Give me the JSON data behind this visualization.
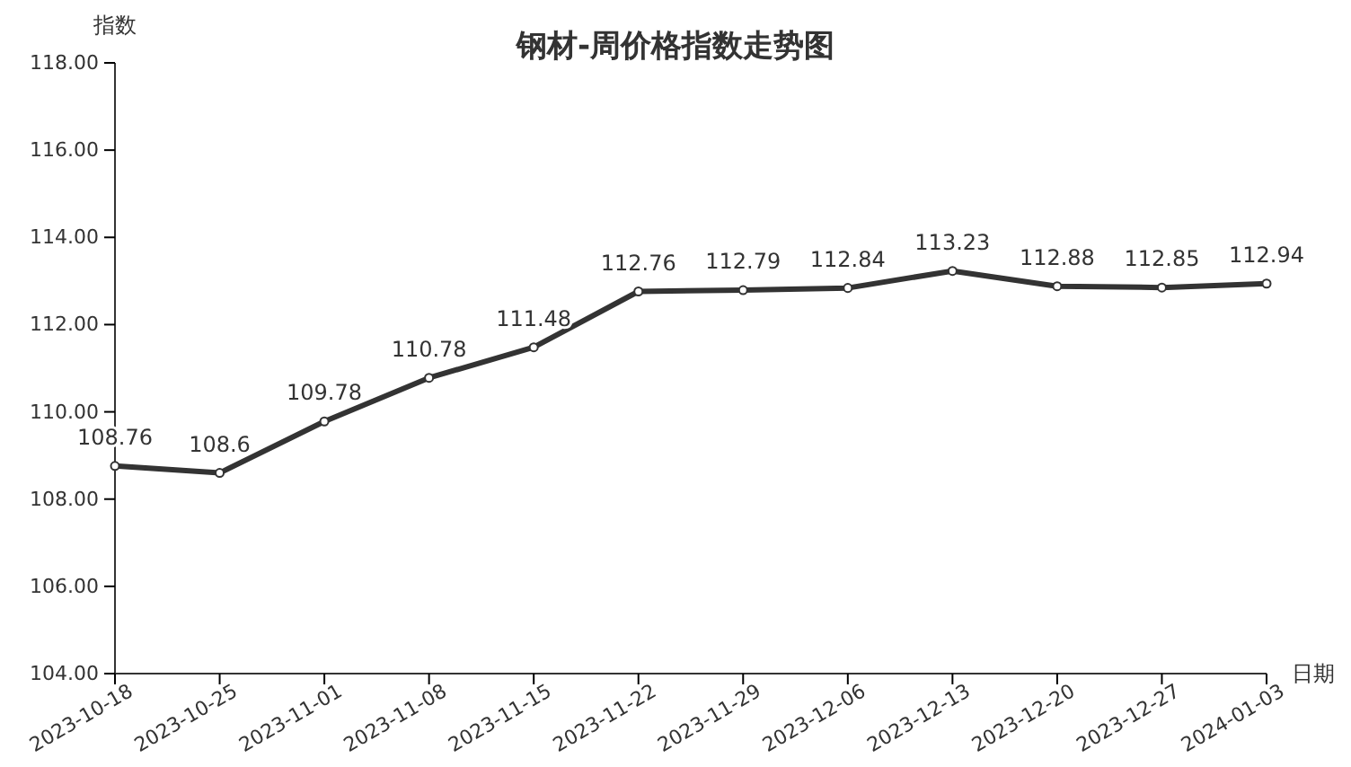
{
  "chart_data": {
    "type": "line",
    "title": "钢材-周价格指数走势图",
    "xlabel": "日期",
    "ylabel": "指数",
    "categories": [
      "2023-10-18",
      "2023-10-25",
      "2023-11-01",
      "2023-11-08",
      "2023-11-15",
      "2023-11-22",
      "2023-11-29",
      "2023-12-06",
      "2023-12-13",
      "2023-12-20",
      "2023-12-27",
      "2024-01-03"
    ],
    "series": [
      {
        "color": "#333333",
        "values": [
          108.76,
          108.6,
          109.78,
          110.78,
          111.48,
          112.76,
          112.79,
          112.84,
          113.23,
          112.88,
          112.85,
          112.94
        ]
      }
    ],
    "ylim": [
      104,
      118
    ],
    "yticks": [
      {
        "value": 104,
        "label": "104.00"
      },
      {
        "value": 106,
        "label": "106.00"
      },
      {
        "value": 108,
        "label": "108.00"
      },
      {
        "value": 110,
        "label": "110.00"
      },
      {
        "value": 112,
        "label": "112.00"
      },
      {
        "value": 114,
        "label": "114.00"
      },
      {
        "value": 116,
        "label": "116.00"
      },
      {
        "value": 118,
        "label": "118.00"
      }
    ],
    "grid": false,
    "marker": "circle",
    "line_style": "solid",
    "data_labels": true
  }
}
